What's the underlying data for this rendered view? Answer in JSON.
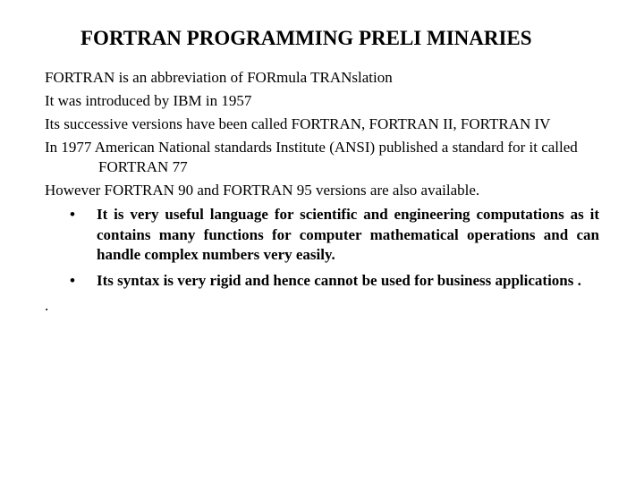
{
  "title": "FORTRAN PROGRAMMING PRELI MINARIES",
  "paragraphs": [
    "FORTRAN is an abbreviation of FORmula TRANslation",
    "It was introduced by IBM in 1957",
    "Its successive versions have been called FORTRAN, FORTRAN II, FORTRAN IV",
    "In 1977 American National standards Institute (ANSI) published a standard for it called FORTRAN 77",
    "However FORTRAN 90 and FORTRAN 95 versions are also available."
  ],
  "bullets": [
    "It is very useful language for scientific and engineering computations as it contains many functions for computer mathematical operations and can handle complex numbers very easily.",
    "Its syntax is very rigid and hence cannot be used for business applications ."
  ],
  "trailing_dot": ".",
  "colors": {
    "background": "#ffffff",
    "text": "#000000"
  },
  "typography": {
    "title_fontsize": 23,
    "body_fontsize": 17,
    "font_family": "Times New Roman"
  }
}
